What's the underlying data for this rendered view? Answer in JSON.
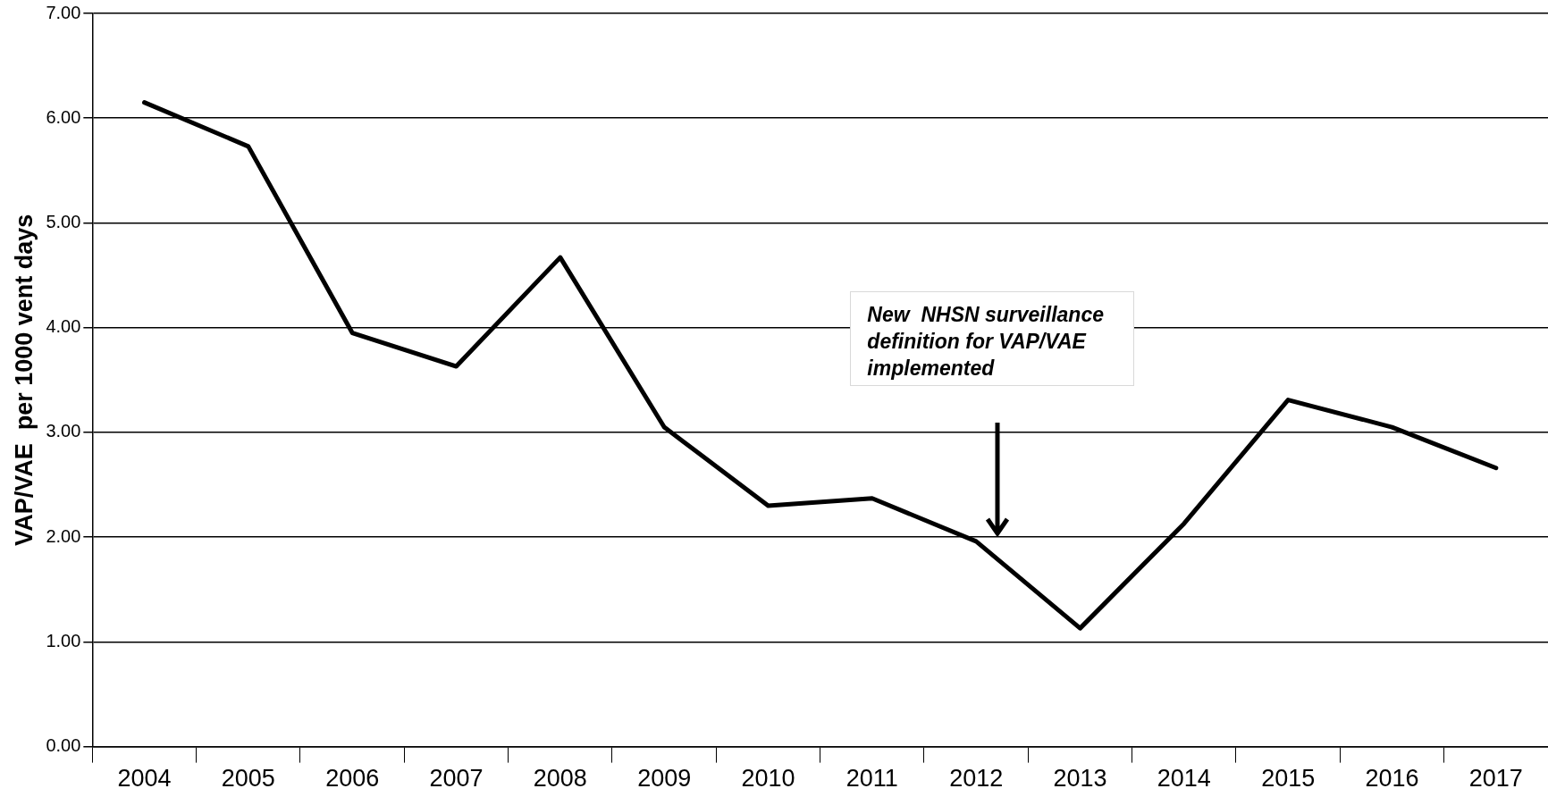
{
  "chart_data": {
    "type": "line",
    "ylabel": "VAP/VAE  per 1000 vent days",
    "categories": [
      "2004",
      "2005",
      "2006",
      "2007",
      "2008",
      "2009",
      "2010",
      "2011",
      "2012",
      "2013",
      "2014",
      "2015",
      "2016",
      "2017"
    ],
    "series": [
      {
        "color": "#000000",
        "values": [
          6.15,
          5.73,
          3.95,
          3.63,
          4.67,
          3.05,
          2.3,
          2.37,
          1.96,
          1.13,
          2.13,
          3.31,
          3.05,
          2.66
        ]
      }
    ],
    "ylim": [
      0,
      7
    ],
    "yticks": [
      {
        "value": 0,
        "label": "0.00"
      },
      {
        "value": 1,
        "label": "1.00"
      },
      {
        "value": 2,
        "label": "2.00"
      },
      {
        "value": 3,
        "label": "3.00"
      },
      {
        "value": 4,
        "label": "4.00"
      },
      {
        "value": 5,
        "label": "5.00"
      },
      {
        "value": 6,
        "label": "6.00"
      },
      {
        "value": 7,
        "label": "7.00"
      }
    ],
    "grid": "y",
    "marker": "none",
    "line_style": "solid",
    "legend": false,
    "annotations": [
      "New  NHSN surveillance definition for VAP/VAE implemented"
    ]
  }
}
